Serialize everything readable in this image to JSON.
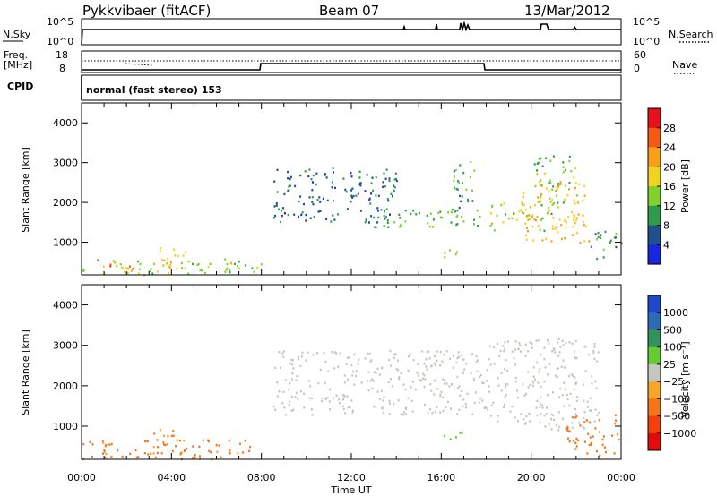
{
  "header": {
    "site": "Pykkvibaer (fitACF)",
    "beam": "Beam 07",
    "date": "13/Mar/2012"
  },
  "panels": {
    "nsky": {
      "label": "N.Sky",
      "ticks": [
        "10^5",
        "10^0"
      ]
    },
    "nsearch": {
      "label": "N.Search",
      "ticks": [
        "10^5",
        "10^0"
      ]
    },
    "freq": {
      "label_top": "Freq.",
      "label_unit": "[MHz]",
      "ticks": [
        "18",
        "8"
      ]
    },
    "nave": {
      "label": "Nave",
      "ticks": [
        "60",
        "0"
      ]
    },
    "cpid": {
      "label": "CPID",
      "mode_text": "normal (fast stereo) 153"
    }
  },
  "colorbars": {
    "power": {
      "label": "Power [dB]",
      "ticks": [
        "28",
        "24",
        "20",
        "16",
        "12",
        "8",
        "4"
      ],
      "colors": [
        "#e8101a",
        "#f45a16",
        "#f9a01a",
        "#f3d321",
        "#7fd22c",
        "#2e9c4a",
        "#21508f",
        "#1727e0"
      ]
    },
    "velocity": {
      "label": "Velocity [m s⁻¹]",
      "ticks": [
        "1000",
        "500",
        "100",
        "25",
        "−25",
        "−100",
        "−500",
        "−1000"
      ],
      "colors": [
        "#1e49c8",
        "#2c6bb8",
        "#32945a",
        "#64cb32",
        "#c6c6c0",
        "#f7a52b",
        "#f5761a",
        "#f3400c",
        "#e30c0c"
      ]
    }
  },
  "chart_data": [
    {
      "type": "heatmap",
      "title": "Power",
      "xlabel": "Time UT",
      "ylabel": "Slant Range [km]",
      "x_ticks": [
        "00:00",
        "04:00",
        "08:00",
        "12:00",
        "16:00",
        "20:00",
        "00:00"
      ],
      "y_ticks": [
        "1000",
        "2000",
        "3000",
        "4000"
      ],
      "xlim_hours": [
        0,
        24
      ],
      "ylim_km": [
        180,
        4500
      ],
      "colorbar": "Power [dB]",
      "scatter_bands": [
        {
          "t": [
            0.0,
            8.0
          ],
          "r": [
            200,
            600
          ],
          "v": 14
        },
        {
          "t": [
            0.8,
            2.6
          ],
          "r": [
            300,
            520
          ],
          "v": 26
        },
        {
          "t": [
            3.0,
            4.6
          ],
          "r": [
            350,
            900
          ],
          "v": 18
        },
        {
          "t": [
            8.5,
            14.0
          ],
          "r": [
            1500,
            2900
          ],
          "v": 7
        },
        {
          "t": [
            13.0,
            18.0
          ],
          "r": [
            1400,
            1900
          ],
          "v": 12
        },
        {
          "t": [
            16.5,
            17.5
          ],
          "r": [
            1800,
            3100
          ],
          "v": 10
        },
        {
          "t": [
            16.0,
            17.0
          ],
          "r": [
            600,
            900
          ],
          "v": 16
        },
        {
          "t": [
            18.0,
            21.0
          ],
          "r": [
            1300,
            2000
          ],
          "v": 15
        },
        {
          "t": [
            19.5,
            22.5
          ],
          "r": [
            1000,
            2600
          ],
          "v": 20
        },
        {
          "t": [
            20.0,
            22.0
          ],
          "r": [
            2000,
            3200
          ],
          "v": 13
        },
        {
          "t": [
            22.5,
            24.0
          ],
          "r": [
            600,
            1300
          ],
          "v": 10
        }
      ]
    },
    {
      "type": "heatmap",
      "title": "Velocity",
      "xlabel": "Time UT",
      "ylabel": "Slant Range [km]",
      "x_ticks": [
        "00:00",
        "04:00",
        "08:00",
        "12:00",
        "16:00",
        "20:00",
        "00:00"
      ],
      "y_ticks": [
        "1000",
        "2000",
        "3000",
        "4000"
      ],
      "xlim_hours": [
        0,
        24
      ],
      "ylim_km": [
        180,
        4500
      ],
      "colorbar": "Velocity [m s-1]",
      "scatter_bands": [
        {
          "t": [
            0.0,
            7.5
          ],
          "r": [
            200,
            700
          ],
          "v": -150
        },
        {
          "t": [
            3.0,
            4.6
          ],
          "r": [
            350,
            950
          ],
          "v": -120
        },
        {
          "t": [
            8.5,
            18.0
          ],
          "r": [
            1300,
            2900
          ],
          "v": 0
        },
        {
          "t": [
            16.0,
            17.0
          ],
          "r": [
            600,
            900
          ],
          "v": 80
        },
        {
          "t": [
            18.0,
            23.0
          ],
          "r": [
            900,
            3200
          ],
          "v": 0
        },
        {
          "t": [
            21.5,
            24.0
          ],
          "r": [
            300,
            1300
          ],
          "v": -300
        }
      ]
    }
  ]
}
